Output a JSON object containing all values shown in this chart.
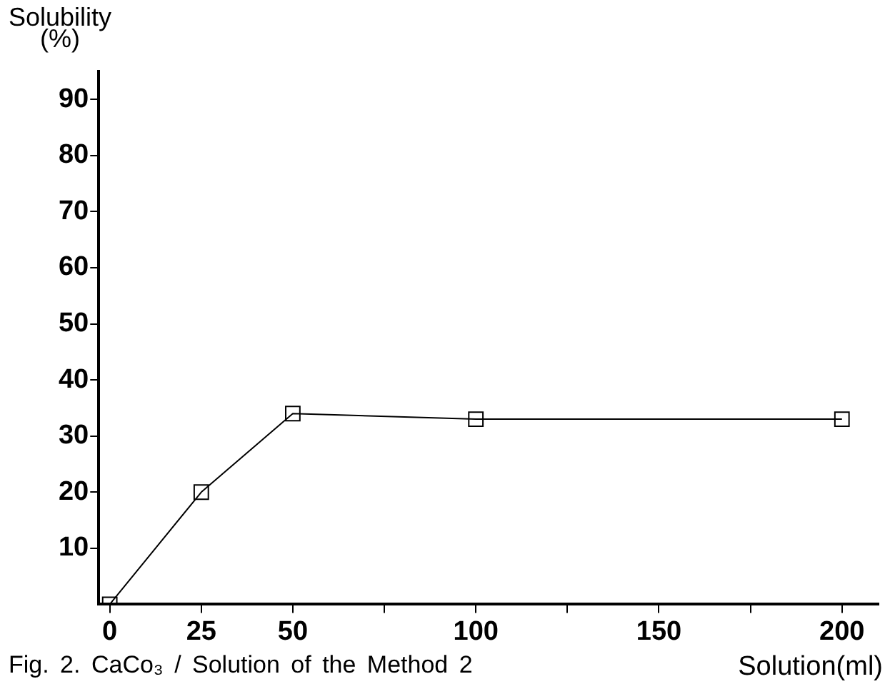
{
  "chart_data": {
    "type": "line",
    "xlabel": "Solution(ml)",
    "ylabel": "Solubility\n(%)",
    "annotations": [
      "Fig. 2. CaCo₃ / Solution of the Method 2"
    ],
    "x": [
      0,
      25,
      50,
      100,
      200
    ],
    "series": [
      {
        "color": "#000000",
        "values": [
          0,
          20,
          34,
          33,
          33
        ]
      }
    ],
    "xlim": [
      -3,
      210
    ],
    "xticks": [
      0,
      25,
      50,
      {
        "value": 75,
        "label": null
      },
      100,
      {
        "value": 125,
        "label": null
      },
      150,
      {
        "value": 175,
        "label": null
      },
      200
    ],
    "ylim": [
      0,
      95
    ],
    "yticks": [
      10,
      20,
      30,
      40,
      50,
      60,
      70,
      80,
      90
    ],
    "grid": false,
    "legend": false,
    "marker": "square",
    "line_style": "solid"
  }
}
